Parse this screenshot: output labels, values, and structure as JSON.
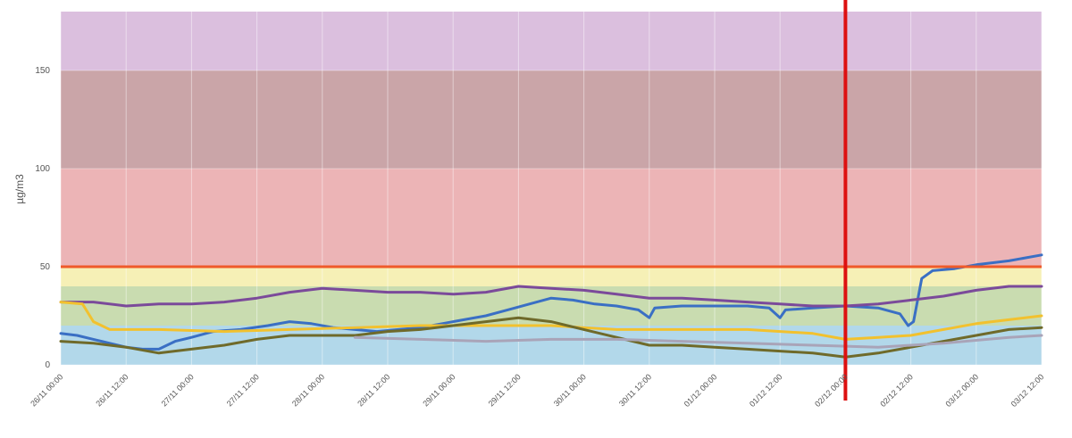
{
  "chart_data": {
    "type": "line",
    "title": "",
    "xlabel": "",
    "ylabel": "µg/m3",
    "ylim": [
      0,
      180
    ],
    "yticks": [
      0,
      50,
      100,
      150
    ],
    "xlim": [
      "2025-11-26T00:00",
      "2025-12-03T12:00"
    ],
    "x_tick_labels": [
      "26/11 00:00",
      "26/11 12:00",
      "27/11 00:00",
      "27/11 12:00",
      "28/11 00:00",
      "28/11 12:00",
      "29/11 00:00",
      "29/11 12:00",
      "30/11 00:00",
      "30/11 12:00",
      "01/12 00:00",
      "01/12 12:00",
      "02/12 00:00",
      "02/12 12:00",
      "03/12 00:00",
      "03/12 12:00"
    ],
    "grid": true,
    "legend": "none",
    "bands": [
      {
        "from": 0,
        "to": 20,
        "color": "#b2d8ea"
      },
      {
        "from": 20,
        "to": 40,
        "color": "#c9dcb0"
      },
      {
        "from": 40,
        "to": 50,
        "color": "#f6f0b6"
      },
      {
        "from": 50,
        "to": 100,
        "color": "#ecb4b6"
      },
      {
        "from": 100,
        "to": 150,
        "color": "#caa5a8"
      },
      {
        "from": 150,
        "to": 180,
        "color": "#dbbfde"
      }
    ],
    "threshold": {
      "y": 50,
      "color": "#ef5a2a"
    },
    "marker": {
      "x": "2025-12-02T00:00",
      "color": "#dd1111"
    },
    "series": [
      {
        "color": "#3a6fc4",
        "points": [
          [
            "2025-11-26T00:00",
            16
          ],
          [
            "2025-11-26T03:00",
            15
          ],
          [
            "2025-11-26T06:00",
            13
          ],
          [
            "2025-11-26T09:00",
            11
          ],
          [
            "2025-11-26T12:00",
            9
          ],
          [
            "2025-11-26T15:00",
            8
          ],
          [
            "2025-11-26T18:00",
            8
          ],
          [
            "2025-11-26T21:00",
            12
          ],
          [
            "2025-11-27T00:00",
            14
          ],
          [
            "2025-11-27T04:00",
            17
          ],
          [
            "2025-11-27T09:00",
            18
          ],
          [
            "2025-11-27T14:00",
            20
          ],
          [
            "2025-11-27T18:00",
            22
          ],
          [
            "2025-11-27T22:00",
            21
          ],
          [
            "2025-11-28T02:00",
            19
          ],
          [
            "2025-11-28T06:00",
            18
          ],
          [
            "2025-11-28T10:00",
            17
          ],
          [
            "2025-11-28T14:00",
            18
          ],
          [
            "2025-11-28T18:00",
            19
          ],
          [
            "2025-11-28T22:00",
            21
          ],
          [
            "2025-11-29T02:00",
            23
          ],
          [
            "2025-11-29T06:00",
            25
          ],
          [
            "2025-11-29T10:00",
            28
          ],
          [
            "2025-11-29T14:00",
            31
          ],
          [
            "2025-11-29T18:00",
            34
          ],
          [
            "2025-11-29T22:00",
            33
          ],
          [
            "2025-11-30T02:00",
            31
          ],
          [
            "2025-11-30T06:00",
            30
          ],
          [
            "2025-11-30T10:00",
            28
          ],
          [
            "2025-11-30T12:00",
            24
          ],
          [
            "2025-11-30T13:00",
            29
          ],
          [
            "2025-11-30T18:00",
            30
          ],
          [
            "2025-12-01T00:00",
            30
          ],
          [
            "2025-12-01T06:00",
            30
          ],
          [
            "2025-12-01T10:00",
            29
          ],
          [
            "2025-12-01T12:00",
            24
          ],
          [
            "2025-12-01T13:00",
            28
          ],
          [
            "2025-12-01T18:00",
            29
          ],
          [
            "2025-12-02T00:00",
            30
          ],
          [
            "2025-12-02T06:00",
            29
          ],
          [
            "2025-12-02T10:00",
            26
          ],
          [
            "2025-12-02T11:30",
            20
          ],
          [
            "2025-12-02T12:30",
            22
          ],
          [
            "2025-12-02T14:00",
            44
          ],
          [
            "2025-12-02T16:00",
            48
          ],
          [
            "2025-12-02T20:00",
            49
          ],
          [
            "2025-12-03T00:00",
            51
          ],
          [
            "2025-12-03T06:00",
            53
          ],
          [
            "2025-12-03T12:00",
            56
          ]
        ]
      },
      {
        "color": "#7b4a9a",
        "points": [
          [
            "2025-11-26T00:00",
            32
          ],
          [
            "2025-11-26T06:00",
            32
          ],
          [
            "2025-11-26T12:00",
            30
          ],
          [
            "2025-11-26T18:00",
            31
          ],
          [
            "2025-11-27T00:00",
            31
          ],
          [
            "2025-11-27T06:00",
            32
          ],
          [
            "2025-11-27T12:00",
            34
          ],
          [
            "2025-11-27T18:00",
            37
          ],
          [
            "2025-11-28T00:00",
            39
          ],
          [
            "2025-11-28T06:00",
            38
          ],
          [
            "2025-11-28T12:00",
            37
          ],
          [
            "2025-11-28T18:00",
            37
          ],
          [
            "2025-11-29T00:00",
            36
          ],
          [
            "2025-11-29T06:00",
            37
          ],
          [
            "2025-11-29T12:00",
            40
          ],
          [
            "2025-11-29T18:00",
            39
          ],
          [
            "2025-11-30T00:00",
            38
          ],
          [
            "2025-11-30T06:00",
            36
          ],
          [
            "2025-11-30T12:00",
            34
          ],
          [
            "2025-11-30T18:00",
            34
          ],
          [
            "2025-12-01T00:00",
            33
          ],
          [
            "2025-12-01T06:00",
            32
          ],
          [
            "2025-12-01T12:00",
            31
          ],
          [
            "2025-12-01T18:00",
            30
          ],
          [
            "2025-12-02T00:00",
            30
          ],
          [
            "2025-12-02T06:00",
            31
          ],
          [
            "2025-12-02T12:00",
            33
          ],
          [
            "2025-12-02T18:00",
            35
          ],
          [
            "2025-12-03T00:00",
            38
          ],
          [
            "2025-12-03T06:00",
            40
          ],
          [
            "2025-12-03T12:00",
            40
          ]
        ]
      },
      {
        "color": "#f2c12e",
        "points": [
          [
            "2025-11-26T00:00",
            32
          ],
          [
            "2025-11-26T04:00",
            31
          ],
          [
            "2025-11-26T06:00",
            22
          ],
          [
            "2025-11-26T09:00",
            18
          ],
          [
            "2025-11-26T18:00",
            18
          ],
          [
            "2025-11-27T06:00",
            17
          ],
          [
            "2025-11-27T18:00",
            18
          ],
          [
            "2025-11-28T06:00",
            19
          ],
          [
            "2025-11-28T18:00",
            20
          ],
          [
            "2025-11-29T06:00",
            20
          ],
          [
            "2025-11-29T18:00",
            20
          ],
          [
            "2025-11-30T06:00",
            18
          ],
          [
            "2025-11-30T18:00",
            18
          ],
          [
            "2025-12-01T06:00",
            18
          ],
          [
            "2025-12-01T18:00",
            16
          ],
          [
            "2025-12-02T00:00",
            13
          ],
          [
            "2025-12-02T06:00",
            14
          ],
          [
            "2025-12-02T12:00",
            15
          ],
          [
            "2025-12-02T18:00",
            18
          ],
          [
            "2025-12-03T00:00",
            21
          ],
          [
            "2025-12-03T06:00",
            23
          ],
          [
            "2025-12-03T12:00",
            25
          ]
        ]
      },
      {
        "color": "#6f6a2a",
        "points": [
          [
            "2025-11-26T00:00",
            12
          ],
          [
            "2025-11-26T06:00",
            11
          ],
          [
            "2025-11-26T12:00",
            9
          ],
          [
            "2025-11-26T18:00",
            6
          ],
          [
            "2025-11-27T00:00",
            8
          ],
          [
            "2025-11-27T06:00",
            10
          ],
          [
            "2025-11-27T12:00",
            13
          ],
          [
            "2025-11-27T18:00",
            15
          ],
          [
            "2025-11-28T00:00",
            15
          ],
          [
            "2025-11-28T06:00",
            15
          ],
          [
            "2025-11-28T12:00",
            17
          ],
          [
            "2025-11-28T18:00",
            18
          ],
          [
            "2025-11-29T00:00",
            20
          ],
          [
            "2025-11-29T06:00",
            22
          ],
          [
            "2025-11-29T12:00",
            24
          ],
          [
            "2025-11-29T18:00",
            22
          ],
          [
            "2025-11-30T00:00",
            18
          ],
          [
            "2025-11-30T06:00",
            14
          ],
          [
            "2025-11-30T12:00",
            10
          ],
          [
            "2025-11-30T18:00",
            10
          ],
          [
            "2025-12-01T00:00",
            9
          ],
          [
            "2025-12-01T06:00",
            8
          ],
          [
            "2025-12-01T12:00",
            7
          ],
          [
            "2025-12-01T18:00",
            6
          ],
          [
            "2025-12-02T00:00",
            4
          ],
          [
            "2025-12-02T06:00",
            6
          ],
          [
            "2025-12-02T12:00",
            9
          ],
          [
            "2025-12-02T18:00",
            12
          ],
          [
            "2025-12-03T00:00",
            15
          ],
          [
            "2025-12-03T06:00",
            18
          ],
          [
            "2025-12-03T12:00",
            19
          ]
        ]
      },
      {
        "color": "#a9a4b8",
        "points": [
          [
            "2025-11-28T06:00",
            14
          ],
          [
            "2025-11-28T18:00",
            13
          ],
          [
            "2025-11-29T06:00",
            12
          ],
          [
            "2025-11-29T18:00",
            13
          ],
          [
            "2025-11-30T06:00",
            13
          ],
          [
            "2025-11-30T18:00",
            12
          ],
          [
            "2025-12-01T06:00",
            11
          ],
          [
            "2025-12-01T18:00",
            10
          ],
          [
            "2025-12-02T06:00",
            9
          ],
          [
            "2025-12-02T18:00",
            11
          ],
          [
            "2025-12-03T06:00",
            14
          ],
          [
            "2025-12-03T12:00",
            15
          ]
        ]
      }
    ]
  }
}
